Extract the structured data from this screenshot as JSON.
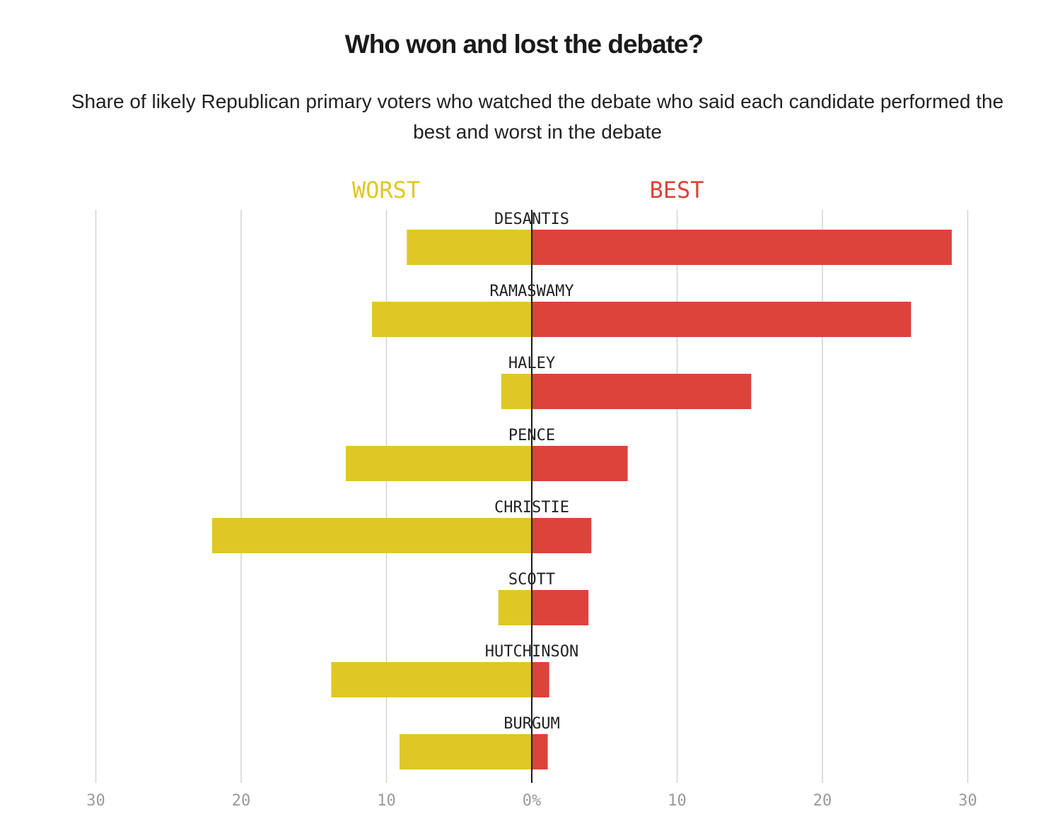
{
  "title": "Who won and lost the debate?",
  "subtitle": "Share of likely Republican primary voters who watched the debate who said each candidate performed the best and worst in the debate",
  "colors": {
    "worst": "#dfc826",
    "best": "#dc433b",
    "grid": "#d4d4d4",
    "axis": "#1a1a1a",
    "tick": "#9a9a9a",
    "label": "#222222"
  },
  "chart_data": {
    "type": "bar",
    "orientation": "horizontal-diverging",
    "categories": [
      "DESANTIS",
      "RAMASWAMY",
      "HALEY",
      "PENCE",
      "CHRISTIE",
      "SCOTT",
      "HUTCHINSON",
      "BURGUM"
    ],
    "series": [
      {
        "name": "WORST",
        "direction": "left",
        "values": [
          8.6,
          11,
          2.1,
          12.8,
          22,
          2.3,
          13.8,
          9.1
        ]
      },
      {
        "name": "BEST",
        "direction": "right",
        "values": [
          28.9,
          26.1,
          15.1,
          6.6,
          4.1,
          3.9,
          1.2,
          1.1
        ]
      }
    ],
    "xlim": [
      -30,
      30
    ],
    "ticks": [
      -30,
      -20,
      -10,
      0,
      10,
      20,
      30
    ],
    "tick_labels": [
      "30",
      "20",
      "10",
      "0%",
      "10",
      "20",
      "30"
    ],
    "grid": true
  }
}
